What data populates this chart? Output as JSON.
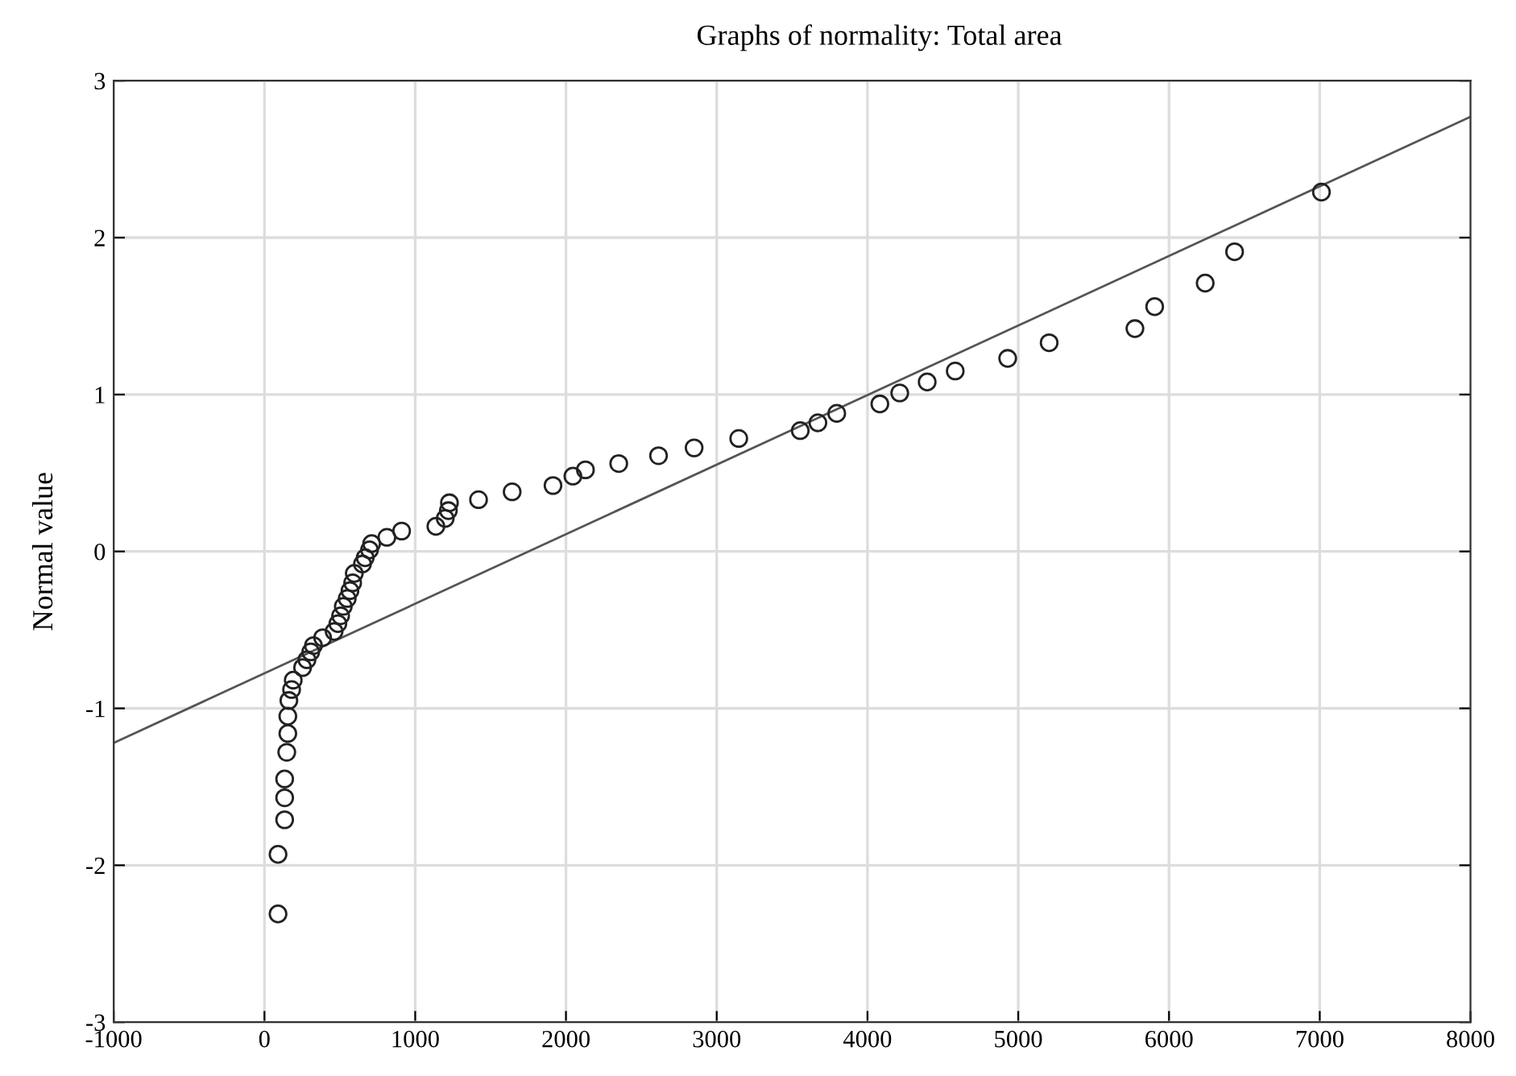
{
  "chart_data": {
    "type": "scatter",
    "title": "Graphs of normality: Total area",
    "ylabel": "Normal value",
    "xlim": [
      -1000,
      8000
    ],
    "xticks": [
      -1000,
      0,
      1000,
      2000,
      3000,
      4000,
      5000,
      6000,
      7000,
      8000
    ],
    "ylim": [
      -3,
      3
    ],
    "yticks": [
      -3,
      -2,
      -1,
      0,
      1,
      2,
      3
    ],
    "grid": true,
    "marker": "circle",
    "series": [
      {
        "color": "#222222",
        "x": [
          90,
          90,
          134,
          134,
          134,
          148,
          155,
          155,
          162,
          180,
          191,
          253,
          282,
          307,
          325,
          386,
          462,
          487,
          505,
          523,
          549,
          567,
          585,
          596,
          650,
          668,
          697,
          711,
          812,
          910,
          1137,
          1199,
          1220,
          1227,
          1420,
          1643,
          1914,
          2046,
          2129,
          2350,
          2614,
          2850,
          3146,
          3554,
          3671,
          3796,
          4082,
          4214,
          4396,
          4582,
          4930,
          5205,
          5774,
          5905,
          6240,
          6435,
          7011
        ],
        "values": [
          -2.31,
          -1.93,
          -1.71,
          -1.57,
          -1.45,
          -1.28,
          -1.16,
          -1.05,
          -0.95,
          -0.88,
          -0.82,
          -0.74,
          -0.69,
          -0.64,
          -0.6,
          -0.55,
          -0.51,
          -0.46,
          -0.41,
          -0.35,
          -0.3,
          -0.25,
          -0.2,
          -0.14,
          -0.08,
          -0.04,
          0.01,
          0.05,
          0.09,
          0.13,
          0.16,
          0.21,
          0.26,
          0.31,
          0.33,
          0.38,
          0.42,
          0.48,
          0.52,
          0.56,
          0.61,
          0.66,
          0.72,
          0.77,
          0.82,
          0.88,
          0.94,
          1.01,
          1.08,
          1.15,
          1.23,
          1.33,
          1.42,
          1.56,
          1.71,
          1.91,
          2.29
        ]
      },
      {
        "type": "line",
        "color": "#555555",
        "marker": "none",
        "x": [
          -1000,
          8000
        ],
        "values": [
          -1.22,
          2.77
        ]
      }
    ]
  }
}
